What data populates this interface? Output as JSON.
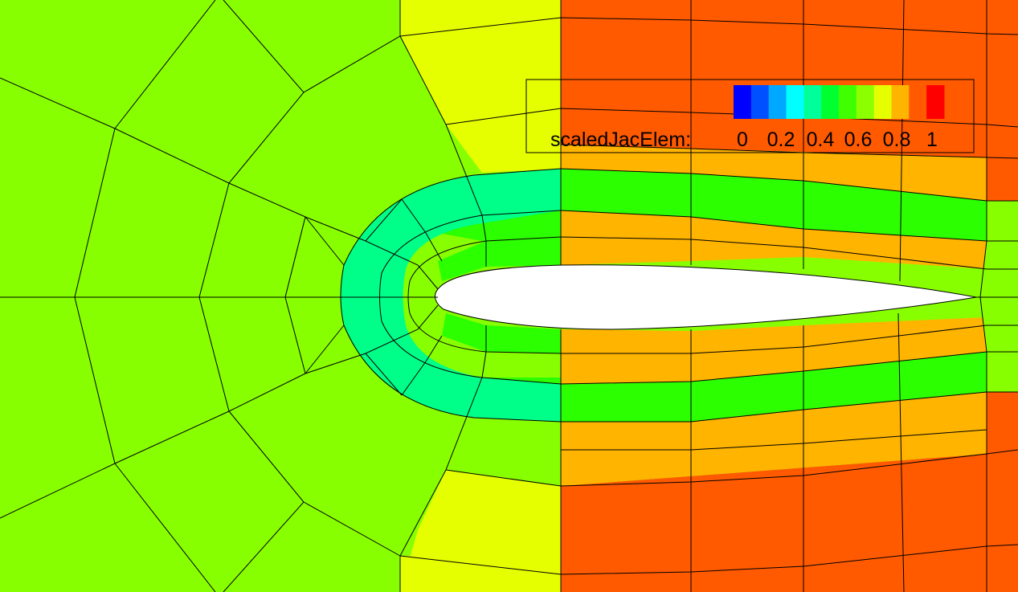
{
  "legend": {
    "title": "scaledJacElem:",
    "ticks": [
      "0",
      "0.2",
      "0.4",
      "0.6",
      "0.8",
      "1"
    ],
    "scale_colors": [
      "#0000ff",
      "#0050ff",
      "#00a8ff",
      "#00ffff",
      "#00ff9a",
      "#00ff30",
      "#40ff00",
      "#8cff00",
      "#e6ff00",
      "#ffb400",
      "#ff5a00",
      "#ff0000"
    ]
  },
  "colors": {
    "far_field": "#88ff00",
    "transition": "#e6ff00",
    "upper_wake": "#ff5a00",
    "near_wake": "#ffb400",
    "boundary_layer": "#2cff00",
    "leading_edge": "#00ff88",
    "trailing_edge": "#88ff00",
    "airfoil": "#ffffff",
    "grid_line": "#000000"
  }
}
